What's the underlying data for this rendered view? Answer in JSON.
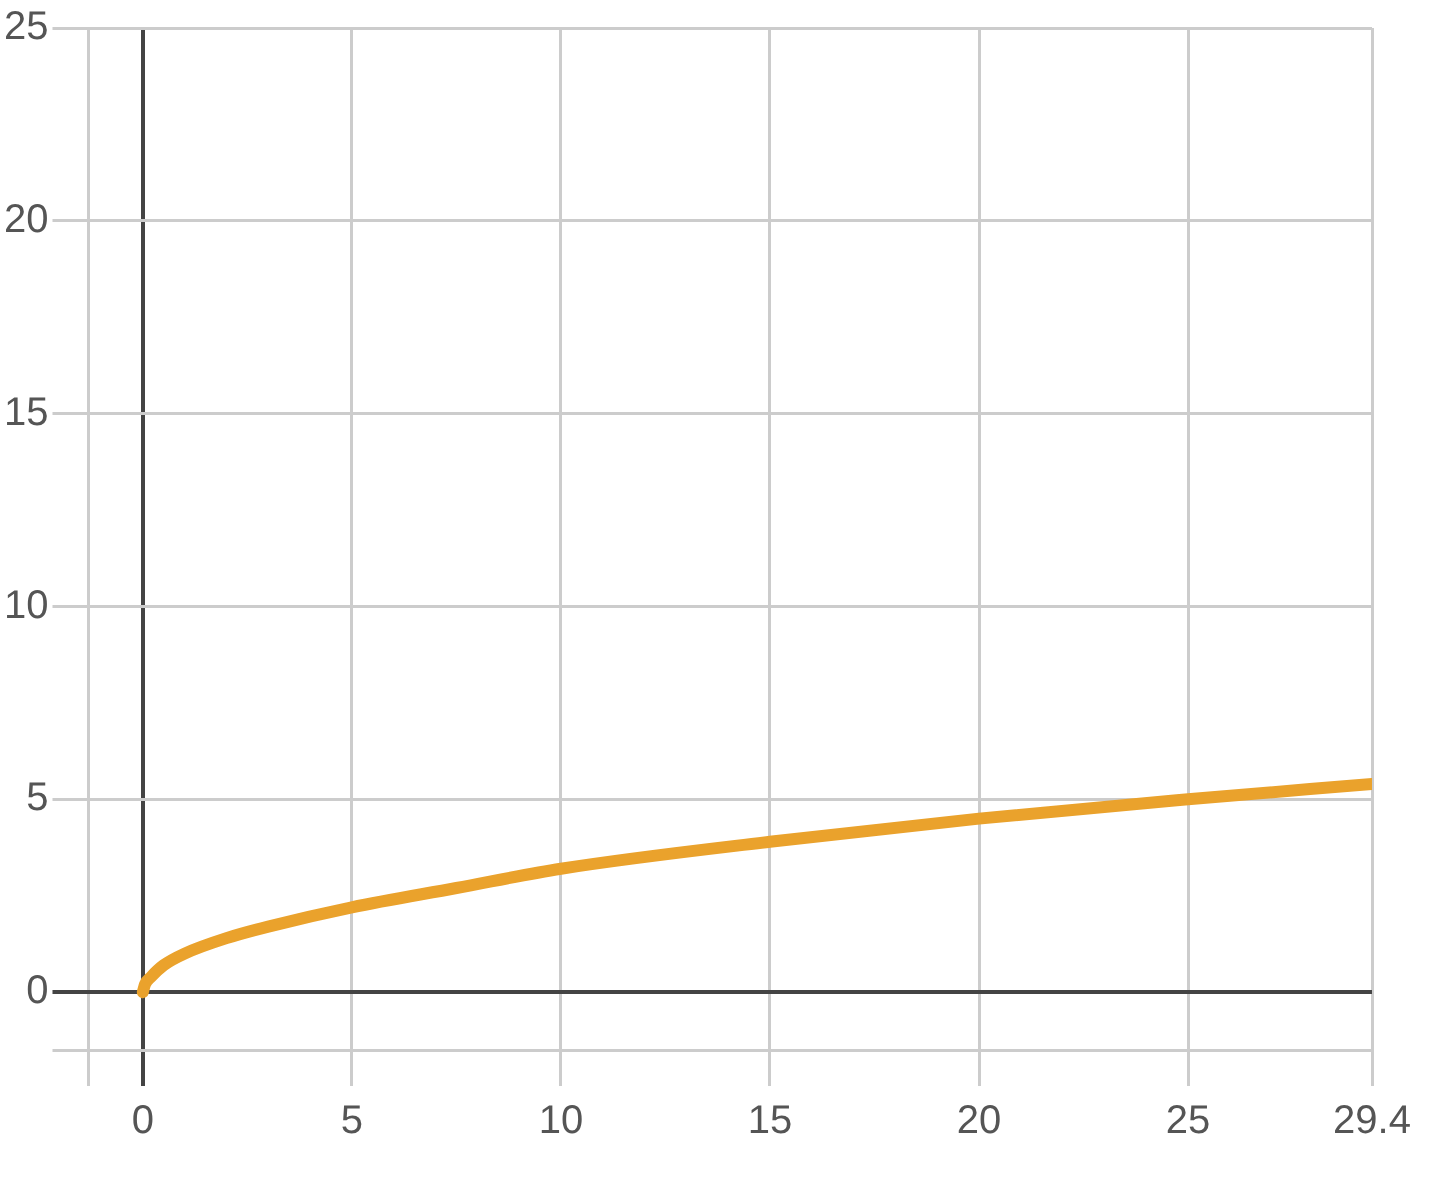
{
  "chart_data": {
    "type": "line",
    "x": [
      0,
      0.05,
      0.2,
      0.5,
      1,
      2,
      3,
      5,
      7.5,
      10,
      15,
      20,
      25,
      29.4
    ],
    "series": [
      {
        "color": "#eaa22c",
        "values": [
          0,
          0.2,
          0.4,
          0.7,
          1,
          1.4,
          1.7,
          2.2,
          2.7,
          3.2,
          3.9,
          4.5,
          5,
          5.4
        ]
      }
    ],
    "xlim": [
      -1.3,
      29.4
    ],
    "ylim": [
      -1.5,
      25
    ],
    "xticks": [
      {
        "value": -1.3,
        "label": null
      },
      0,
      5,
      10,
      15,
      20,
      25,
      29.4
    ],
    "yticks": [
      {
        "value": -1.5,
        "label": null
      },
      0,
      5,
      10,
      15,
      20,
      25
    ],
    "grid": true,
    "legend": false,
    "marker": "none",
    "line_style": "solid"
  }
}
